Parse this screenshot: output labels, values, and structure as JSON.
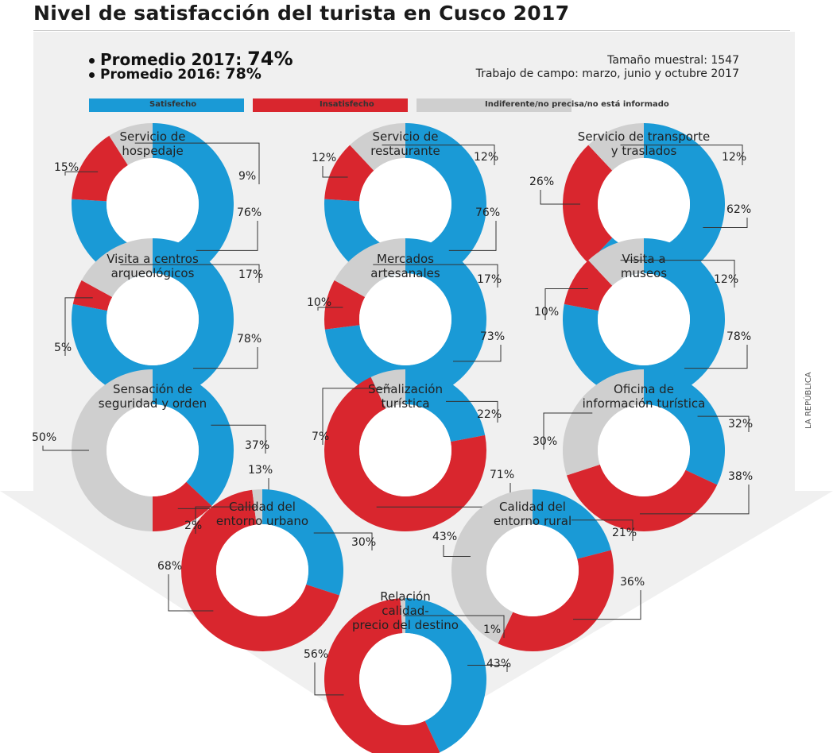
{
  "header": {
    "title": "Nivel de satisfacción del turista en Cusco 2017",
    "avg_2017_label": "Promedio 2017:",
    "avg_2017_value": "74%",
    "avg_2016_label": "Promedio 2016:",
    "avg_2016_value": "78%",
    "sample": "Tamaño muestral: 1547",
    "fieldwork": "Trabajo de campo: marzo, junio y octubre 2017",
    "source": "LA REPÚBLICA"
  },
  "legend": [
    {
      "label": "Satisfecho",
      "color": "#1a9ad6"
    },
    {
      "label": "Insatisfecho",
      "color": "#d9262e"
    },
    {
      "label": "Indiferente/no precisa/no está informado",
      "color": "#cfcfcf"
    }
  ],
  "colors": {
    "satisfied": "#1a9ad6",
    "dissatisfied": "#d9262e",
    "indifferent": "#cfcfcf",
    "panel": "#f0f0f0"
  },
  "chart_data": {
    "type": "pie",
    "series_names": [
      "Satisfecho",
      "Insatisfecho",
      "Indiferente/no precisa/no está informado"
    ],
    "charts": [
      {
        "title": [
          "Servicio de",
          "hospedaje"
        ],
        "satisfied": 76,
        "dissatisfied": 15,
        "indifferent": 9
      },
      {
        "title": [
          "Servicio de",
          "restaurante"
        ],
        "satisfied": 76,
        "dissatisfied": 12,
        "indifferent": 12
      },
      {
        "title": [
          "Servicio de transporte",
          "y traslados"
        ],
        "satisfied": 62,
        "dissatisfied": 26,
        "indifferent": 12
      },
      {
        "title": [
          "Visita a centros",
          "arqueológicos"
        ],
        "satisfied": 78,
        "dissatisfied": 5,
        "indifferent": 17
      },
      {
        "title": [
          "Mercados",
          "artesanales"
        ],
        "satisfied": 73,
        "dissatisfied": 10,
        "indifferent": 17
      },
      {
        "title": [
          "Visita a",
          "museos"
        ],
        "satisfied": 78,
        "dissatisfied": 10,
        "indifferent": 12
      },
      {
        "title": [
          "Sensación de",
          "seguridad y orden"
        ],
        "satisfied": 37,
        "dissatisfied": 13,
        "indifferent": 50
      },
      {
        "title": [
          "Señalización",
          "turística"
        ],
        "satisfied": 22,
        "dissatisfied": 71,
        "indifferent": 7
      },
      {
        "title": [
          "Oficina de",
          "información turística"
        ],
        "satisfied": 32,
        "dissatisfied": 38,
        "indifferent": 30
      },
      {
        "title": [
          "Calidad del",
          "entorno urbano"
        ],
        "satisfied": 30,
        "dissatisfied": 68,
        "indifferent": 2
      },
      {
        "title": [
          "Calidad del",
          "entorno rural"
        ],
        "satisfied": 21,
        "dissatisfied": 36,
        "indifferent": 43
      },
      {
        "title": [
          "Relación",
          "calidad-",
          "precio del destino"
        ],
        "satisfied": 43,
        "dissatisfied": 56,
        "indifferent": 1
      }
    ]
  }
}
